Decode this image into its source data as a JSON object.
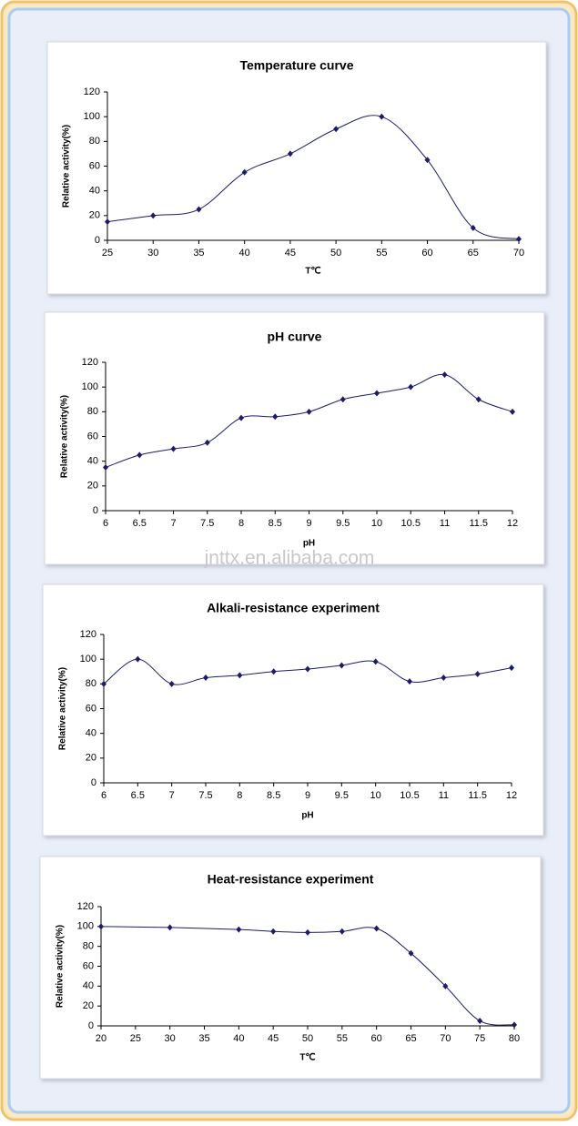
{
  "watermark": "jnttx.en.alibaba.com",
  "chart_data": [
    {
      "type": "line",
      "title": "Temperature curve",
      "xlabel": "T℃",
      "ylabel": "Relative activity(%)",
      "x": [
        25,
        30,
        35,
        40,
        45,
        50,
        55,
        60,
        65,
        70
      ],
      "values": [
        15,
        20,
        25,
        55,
        70,
        90,
        100,
        65,
        10,
        1
      ],
      "color": "#1c1c6b",
      "xlim": [
        25,
        70
      ],
      "xticks": [
        25,
        30,
        35,
        40,
        45,
        50,
        55,
        60,
        65,
        70
      ],
      "ylim": [
        0,
        120
      ],
      "yticks": [
        0,
        20,
        40,
        60,
        80,
        100,
        120
      ]
    },
    {
      "type": "line",
      "title": "pH curve",
      "xlabel": "pH",
      "ylabel": "Relative activity(%)",
      "x": [
        6,
        6.5,
        7,
        7.5,
        8,
        8.5,
        9,
        9.5,
        10,
        10.5,
        11,
        11.5,
        12
      ],
      "values": [
        35,
        45,
        50,
        55,
        75,
        76,
        80,
        90,
        95,
        100,
        110,
        90,
        80
      ],
      "color": "#1c1c6b",
      "xlim": [
        6,
        12
      ],
      "xticks": [
        6,
        6.5,
        7,
        7.5,
        8,
        8.5,
        9,
        9.5,
        10,
        10.5,
        11,
        11.5,
        12
      ],
      "ylim": [
        0,
        120
      ],
      "yticks": [
        0,
        20,
        40,
        60,
        80,
        100,
        120
      ]
    },
    {
      "type": "line",
      "title": "Alkali-resistance experiment",
      "xlabel": "pH",
      "ylabel": "Relative activity(%)",
      "x": [
        6,
        6.5,
        7,
        7.5,
        8,
        8.5,
        9,
        9.5,
        10,
        10.5,
        11,
        11.5,
        12
      ],
      "values": [
        80,
        100,
        80,
        85,
        87,
        90,
        92,
        95,
        98,
        82,
        85,
        88,
        93
      ],
      "color": "#1c1c6b",
      "xlim": [
        6,
        12
      ],
      "xticks": [
        6,
        6.5,
        7,
        7.5,
        8,
        8.5,
        9,
        9.5,
        10,
        10.5,
        11,
        11.5,
        12
      ],
      "ylim": [
        0,
        120
      ],
      "yticks": [
        0,
        20,
        40,
        60,
        80,
        100,
        120
      ]
    },
    {
      "type": "line",
      "title": "Heat-resistance experiment",
      "xlabel": "T℃",
      "ylabel": "Relative activity(%)",
      "x": [
        20,
        30,
        40,
        45,
        50,
        55,
        60,
        65,
        70,
        75,
        80
      ],
      "values": [
        100,
        99,
        97,
        95,
        94,
        95,
        98,
        73,
        40,
        5,
        1
      ],
      "color": "#1c1c6b",
      "xlim": [
        20,
        80
      ],
      "xticks": [
        20,
        25,
        30,
        35,
        40,
        45,
        50,
        55,
        60,
        65,
        70,
        75,
        80
      ],
      "ylim": [
        0,
        120
      ],
      "yticks": [
        0,
        20,
        40,
        60,
        80,
        100,
        120
      ]
    }
  ]
}
